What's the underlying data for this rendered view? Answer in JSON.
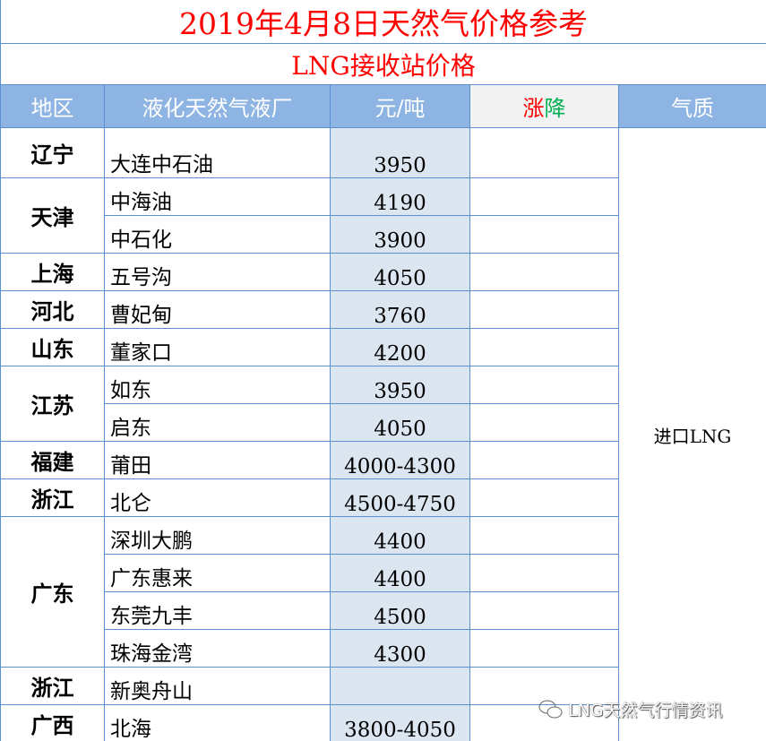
{
  "title": "2019年4月8日天然气价格参考",
  "subtitle": "LNG接收站价格",
  "headers": {
    "region": "地区",
    "plant": "液化天然气液厂",
    "price": "元/吨",
    "change_up": "涨",
    "change_down": "降",
    "quality": "气质"
  },
  "colors": {
    "title": "#ff0000",
    "header_bg": "#8db4e2",
    "price_bg": "#dce6f1",
    "up": "#ff0000",
    "down": "#00b050"
  },
  "quality_value": "进口LNG",
  "groups": [
    {
      "region": "辽宁",
      "rows": [
        {
          "plant": "大连中石油",
          "price": "3950"
        }
      ]
    },
    {
      "region": "天津",
      "rows": [
        {
          "plant": "中海油",
          "price": "4190"
        },
        {
          "plant": "中石化",
          "price": "3900"
        }
      ]
    },
    {
      "region": "上海",
      "rows": [
        {
          "plant": "五号沟",
          "price": "4050"
        }
      ]
    },
    {
      "region": "河北",
      "rows": [
        {
          "plant": "曹妃甸",
          "price": "3760"
        }
      ]
    },
    {
      "region": "山东",
      "rows": [
        {
          "plant": "董家口",
          "price": "4200"
        }
      ]
    },
    {
      "region": "江苏",
      "rows": [
        {
          "plant": "如东",
          "price": "3950"
        },
        {
          "plant": "启东",
          "price": "4050"
        }
      ]
    },
    {
      "region": "福建",
      "rows": [
        {
          "plant": "莆田",
          "price": "4000-4300"
        }
      ]
    },
    {
      "region": "浙江",
      "rows": [
        {
          "plant": "北仑",
          "price": "4500-4750"
        }
      ]
    },
    {
      "region": "广东",
      "rows": [
        {
          "plant": "深圳大鹏",
          "price": "4400"
        },
        {
          "plant": "广东惠来",
          "price": "4400"
        },
        {
          "plant": "东莞九丰",
          "price": "4500"
        },
        {
          "plant": "珠海金湾",
          "price": "4300"
        }
      ]
    },
    {
      "region": "浙江",
      "rows": [
        {
          "plant": "新奥舟山",
          "price": ""
        }
      ]
    },
    {
      "region": "广西",
      "rows": [
        {
          "plant": "北海",
          "price": "3800-4050"
        }
      ]
    }
  ],
  "watermark": {
    "icon": "wechat-icon",
    "text": "LNG天然气行情资讯"
  }
}
